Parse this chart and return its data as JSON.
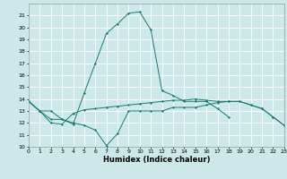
{
  "title": "",
  "xlabel": "Humidex (Indice chaleur)",
  "x": [
    0,
    1,
    2,
    3,
    4,
    5,
    6,
    7,
    8,
    9,
    10,
    11,
    12,
    13,
    14,
    15,
    16,
    17,
    18,
    19,
    20,
    21,
    22,
    23
  ],
  "line1": [
    13.8,
    13.0,
    13.0,
    12.3,
    12.0,
    11.8,
    11.4,
    10.1,
    11.1,
    13.0,
    13.0,
    13.0,
    13.0,
    13.3,
    13.3,
    13.3,
    13.5,
    13.7,
    13.8,
    13.8,
    13.5,
    13.2,
    12.5,
    11.8
  ],
  "line2": [
    13.8,
    13.0,
    12.3,
    12.3,
    11.9,
    14.5,
    17.0,
    19.5,
    20.3,
    21.2,
    21.3,
    19.8,
    14.7,
    14.3,
    13.8,
    13.8,
    13.8,
    13.2,
    12.5,
    null,
    null,
    null,
    null,
    null
  ],
  "line3": [
    13.8,
    13.0,
    12.0,
    11.9,
    12.8,
    13.1,
    13.2,
    13.3,
    13.4,
    13.5,
    13.6,
    13.7,
    13.8,
    13.9,
    13.9,
    14.0,
    13.9,
    13.8,
    13.8,
    13.8,
    13.5,
    13.2,
    12.5,
    11.8
  ],
  "ylim": [
    10,
    22
  ],
  "xlim": [
    0,
    23
  ],
  "yticks": [
    10,
    11,
    12,
    13,
    14,
    15,
    16,
    17,
    18,
    19,
    20,
    21
  ],
  "xticks": [
    0,
    1,
    2,
    3,
    4,
    5,
    6,
    7,
    8,
    9,
    10,
    11,
    12,
    13,
    14,
    15,
    16,
    17,
    18,
    19,
    20,
    21,
    22,
    23
  ],
  "line_color": "#1a7a6e",
  "bg_color": "#cce8e8",
  "grid_color": "#ffffff",
  "tick_fontsize": 4.5,
  "xlabel_fontsize": 6.0
}
